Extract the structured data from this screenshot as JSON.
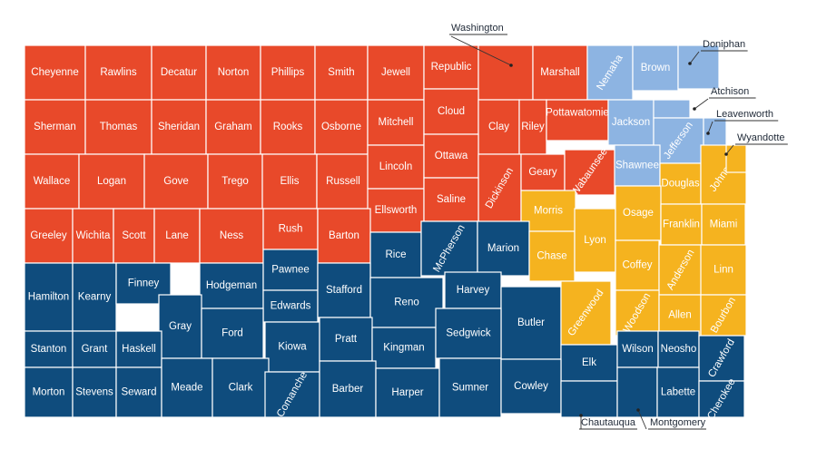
{
  "colors": {
    "red": "#E8492A",
    "light_blue": "#8DB4E2",
    "yellow": "#F5B31F",
    "dark_blue": "#0F4C7D"
  },
  "counties": [
    {
      "name": "Cheyenne",
      "color": "red"
    },
    {
      "name": "Rawlins",
      "color": "red"
    },
    {
      "name": "Decatur",
      "color": "red"
    },
    {
      "name": "Norton",
      "color": "red"
    },
    {
      "name": "Phillips",
      "color": "red"
    },
    {
      "name": "Smith",
      "color": "red"
    },
    {
      "name": "Jewell",
      "color": "red"
    },
    {
      "name": "Republic",
      "color": "red"
    },
    {
      "name": "",
      "color": "red"
    },
    {
      "name": "Marshall",
      "color": "red"
    },
    {
      "name": "Nemaha",
      "color": "light_blue"
    },
    {
      "name": "Brown",
      "color": "light_blue"
    },
    {
      "name": "",
      "color": "light_blue"
    },
    {
      "name": "Sherman",
      "color": "red"
    },
    {
      "name": "Thomas",
      "color": "red"
    },
    {
      "name": "Sheridan",
      "color": "red"
    },
    {
      "name": "Graham",
      "color": "red"
    },
    {
      "name": "Rooks",
      "color": "red"
    },
    {
      "name": "Osborne",
      "color": "red"
    },
    {
      "name": "Mitchell",
      "color": "red"
    },
    {
      "name": "Cloud",
      "color": "red"
    },
    {
      "name": "Clay",
      "color": "red"
    },
    {
      "name": "Riley",
      "color": "red"
    },
    {
      "name": "Pottawatomie",
      "color": "red"
    },
    {
      "name": "Jackson",
      "color": "light_blue"
    },
    {
      "name": "",
      "color": "light_blue"
    },
    {
      "name": "Jefferson",
      "color": "light_blue"
    },
    {
      "name": "",
      "color": "light_blue"
    },
    {
      "name": "Wallace",
      "color": "red"
    },
    {
      "name": "Logan",
      "color": "red"
    },
    {
      "name": "Gove",
      "color": "red"
    },
    {
      "name": "Trego",
      "color": "red"
    },
    {
      "name": "Ellis",
      "color": "red"
    },
    {
      "name": "Russell",
      "color": "red"
    },
    {
      "name": "Lincoln",
      "color": "red"
    },
    {
      "name": "Ottawa",
      "color": "red"
    },
    {
      "name": "Dickinson",
      "color": "red"
    },
    {
      "name": "Geary",
      "color": "red"
    },
    {
      "name": "Wabaunsee",
      "color": "red"
    },
    {
      "name": "Shawnee",
      "color": "light_blue"
    },
    {
      "name": "Douglas",
      "color": "yellow"
    },
    {
      "name": "Johnson",
      "color": "yellow"
    },
    {
      "name": "",
      "color": "yellow"
    },
    {
      "name": "Ellsworth",
      "color": "red"
    },
    {
      "name": "Saline",
      "color": "red"
    },
    {
      "name": "Morris",
      "color": "yellow"
    },
    {
      "name": "Greeley",
      "color": "red"
    },
    {
      "name": "Wichita",
      "color": "red"
    },
    {
      "name": "Scott",
      "color": "red"
    },
    {
      "name": "Lane",
      "color": "red"
    },
    {
      "name": "Ness",
      "color": "red"
    },
    {
      "name": "Rush",
      "color": "red"
    },
    {
      "name": "Barton",
      "color": "red"
    },
    {
      "name": "Rice",
      "color": "dark_blue"
    },
    {
      "name": "McPherson",
      "color": "dark_blue"
    },
    {
      "name": "Marion",
      "color": "dark_blue"
    },
    {
      "name": "Chase",
      "color": "yellow"
    },
    {
      "name": "Lyon",
      "color": "yellow"
    },
    {
      "name": "Osage",
      "color": "yellow"
    },
    {
      "name": "Franklin",
      "color": "yellow"
    },
    {
      "name": "Miami",
      "color": "yellow"
    },
    {
      "name": "Hamilton",
      "color": "dark_blue"
    },
    {
      "name": "Kearny",
      "color": "dark_blue"
    },
    {
      "name": "Finney",
      "color": "dark_blue"
    },
    {
      "name": "Hodgeman",
      "color": "dark_blue"
    },
    {
      "name": "Pawnee",
      "color": "dark_blue"
    },
    {
      "name": "Edwards",
      "color": "dark_blue"
    },
    {
      "name": "Stafford",
      "color": "dark_blue"
    },
    {
      "name": "Reno",
      "color": "dark_blue"
    },
    {
      "name": "Harvey",
      "color": "dark_blue"
    },
    {
      "name": "Butler",
      "color": "dark_blue"
    },
    {
      "name": "Greenwood",
      "color": "yellow"
    },
    {
      "name": "Coffey",
      "color": "yellow"
    },
    {
      "name": "Anderson",
      "color": "yellow"
    },
    {
      "name": "Linn",
      "color": "yellow"
    },
    {
      "name": "Gray",
      "color": "dark_blue"
    },
    {
      "name": "Ford",
      "color": "dark_blue"
    },
    {
      "name": "Woodson",
      "color": "yellow"
    },
    {
      "name": "Allen",
      "color": "yellow"
    },
    {
      "name": "Bourbon",
      "color": "yellow"
    },
    {
      "name": "Stanton",
      "color": "dark_blue"
    },
    {
      "name": "Grant",
      "color": "dark_blue"
    },
    {
      "name": "Haskell",
      "color": "dark_blue"
    },
    {
      "name": "Kiowa",
      "color": "dark_blue"
    },
    {
      "name": "Pratt",
      "color": "dark_blue"
    },
    {
      "name": "Kingman",
      "color": "dark_blue"
    },
    {
      "name": "Sedgwick",
      "color": "dark_blue"
    },
    {
      "name": "Elk",
      "color": "dark_blue"
    },
    {
      "name": "Wilson",
      "color": "dark_blue"
    },
    {
      "name": "Neosho",
      "color": "dark_blue"
    },
    {
      "name": "Crawford",
      "color": "dark_blue"
    },
    {
      "name": "Morton",
      "color": "dark_blue"
    },
    {
      "name": "Stevens",
      "color": "dark_blue"
    },
    {
      "name": "Seward",
      "color": "dark_blue"
    },
    {
      "name": "Meade",
      "color": "dark_blue"
    },
    {
      "name": "Clark",
      "color": "dark_blue"
    },
    {
      "name": "Comanche",
      "color": "dark_blue"
    },
    {
      "name": "Barber",
      "color": "dark_blue"
    },
    {
      "name": "Harper",
      "color": "dark_blue"
    },
    {
      "name": "Sumner",
      "color": "dark_blue"
    },
    {
      "name": "Cowley",
      "color": "dark_blue"
    },
    {
      "name": "",
      "color": "dark_blue"
    },
    {
      "name": "",
      "color": "dark_blue"
    },
    {
      "name": "Labette",
      "color": "dark_blue"
    },
    {
      "name": "Cherokee",
      "color": "dark_blue"
    }
  ],
  "callouts": [
    {
      "name": "Washington"
    },
    {
      "name": "Doniphan"
    },
    {
      "name": "Atchison"
    },
    {
      "name": "Leavenworth"
    },
    {
      "name": "Wyandotte"
    },
    {
      "name": "Chautauqua"
    },
    {
      "name": "Montgomery"
    }
  ]
}
